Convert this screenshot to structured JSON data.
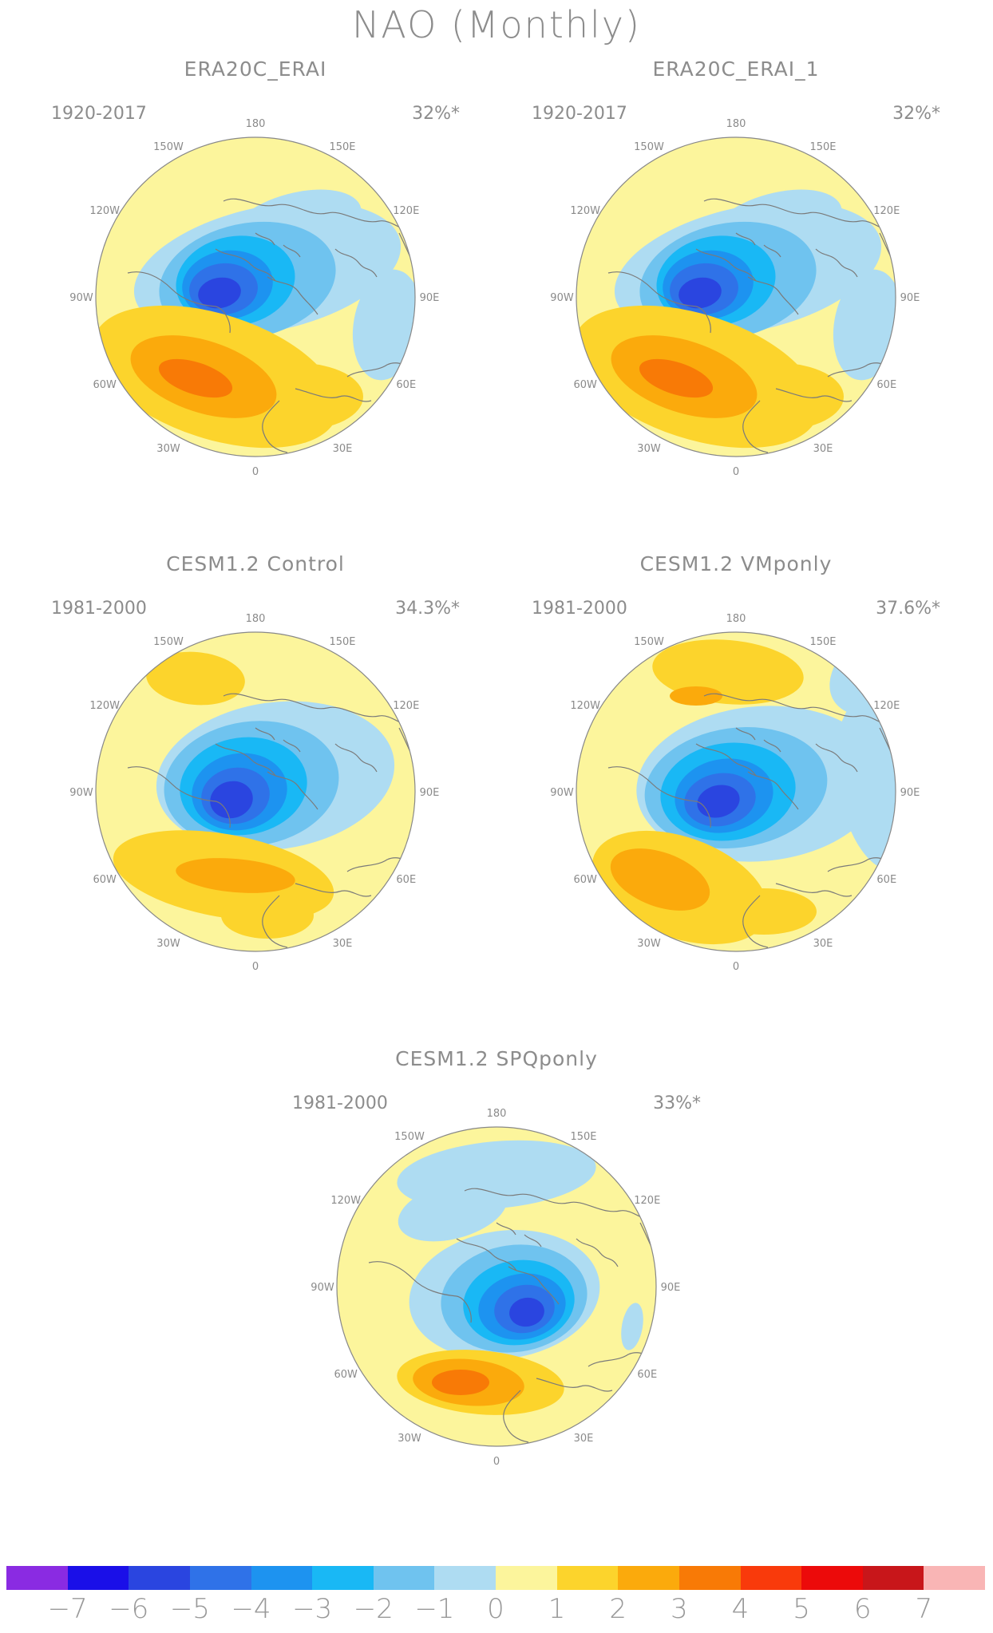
{
  "title": "NAO (Monthly)",
  "colors": {
    "ocean_fill": "#fcf59c",
    "coast": "#7a7a7a",
    "rim": "#888888",
    "neg": [
      "#aedcf2",
      "#6fc3ef",
      "#19b8f5",
      "#1d93f0",
      "#2f72e8",
      "#2a45e0",
      "#1a0fe8",
      "#8a2be2"
    ],
    "pos": [
      "#fcd42c",
      "#fbaa0c",
      "#f87a06",
      "#f93a0b",
      "#ec0a0a",
      "#c8161a",
      "#f9b5b5"
    ]
  },
  "panels": [
    {
      "id": "era20c-erai",
      "title": "ERA20C_ERAI",
      "period": "1920-2017",
      "variance": "32%*"
    },
    {
      "id": "era20c-erai-1",
      "title": "ERA20C_ERAI_1",
      "period": "1920-2017",
      "variance": "32%*"
    },
    {
      "id": "cesm-control",
      "title": "CESM1.2 Control",
      "period": "1981-2000",
      "variance": "34.3%*"
    },
    {
      "id": "cesm-vmponly",
      "title": "CESM1.2 VMponly",
      "period": "1981-2000",
      "variance": "37.6%*"
    },
    {
      "id": "cesm-spqponly",
      "title": "CESM1.2 SPQponly",
      "period": "1981-2000",
      "variance": "33%*"
    }
  ],
  "lon_labels": [
    "180",
    "150E",
    "120E",
    "90E",
    "60E",
    "30E",
    "0",
    "30W",
    "60W",
    "90W",
    "120W",
    "150W"
  ],
  "colorbar": {
    "colors": [
      "#8a2be2",
      "#1a0fe8",
      "#2a45e0",
      "#2f72e8",
      "#1d93f0",
      "#19b8f5",
      "#6fc3ef",
      "#aedcf2",
      "#fcf59c",
      "#fcd42c",
      "#fbaa0c",
      "#f87a06",
      "#f93a0b",
      "#ec0a0a",
      "#c8161a",
      "#f9b5b5"
    ],
    "labels": [
      "-7",
      "-6",
      "-5",
      "-4",
      "-3",
      "-2",
      "-1",
      "0",
      "1",
      "2",
      "3",
      "4",
      "5",
      "6",
      "7"
    ]
  }
}
